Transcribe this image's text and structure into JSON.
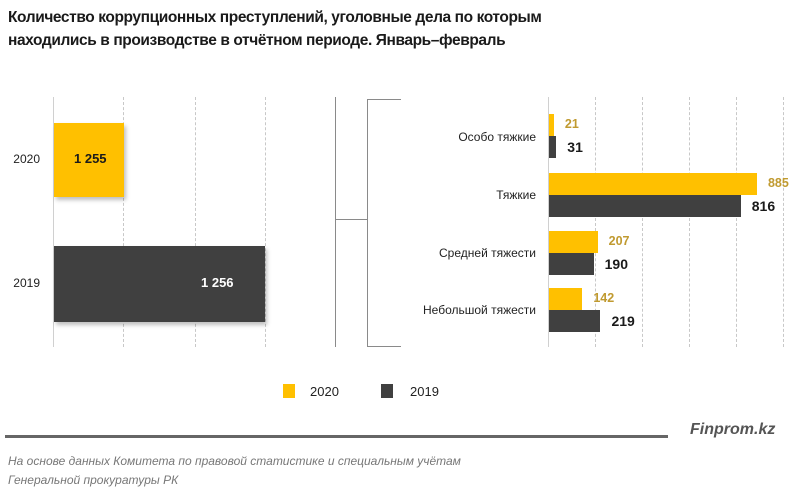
{
  "title_line1": "Количество коррупционных преступлений, уголовные дела по которым",
  "title_line2": "находились в производстве в отчётном периоде. Январь–февраль",
  "colors": {
    "y2020": "#FFC000",
    "y2019": "#404040",
    "label2020": "#C09A30"
  },
  "chart_data": [
    {
      "type": "bar",
      "orientation": "horizontal",
      "categories": [
        "2020",
        "2019"
      ],
      "values": [
        1255,
        1256
      ],
      "value_labels": [
        "1 255",
        "1 256"
      ],
      "grid": true
    },
    {
      "type": "bar",
      "orientation": "horizontal",
      "categories": [
        "Особо тяжкие",
        "Тяжкие",
        "Средней тяжести",
        "Небольшой тяжести"
      ],
      "series": [
        {
          "name": "2020",
          "values": [
            21,
            885,
            207,
            142
          ]
        },
        {
          "name": "2019",
          "values": [
            31,
            816,
            190,
            219
          ]
        }
      ],
      "xlim": [
        0,
        1000
      ],
      "grid": true,
      "legend": "bottom"
    }
  ],
  "legend": [
    {
      "label": "2020"
    },
    {
      "label": "2019"
    }
  ],
  "brand": "Finprom.kz",
  "source_line1": "На основе данных Комитета по правовой статистике и специальным учётам",
  "source_line2": "Генеральной прокуратуры РК"
}
